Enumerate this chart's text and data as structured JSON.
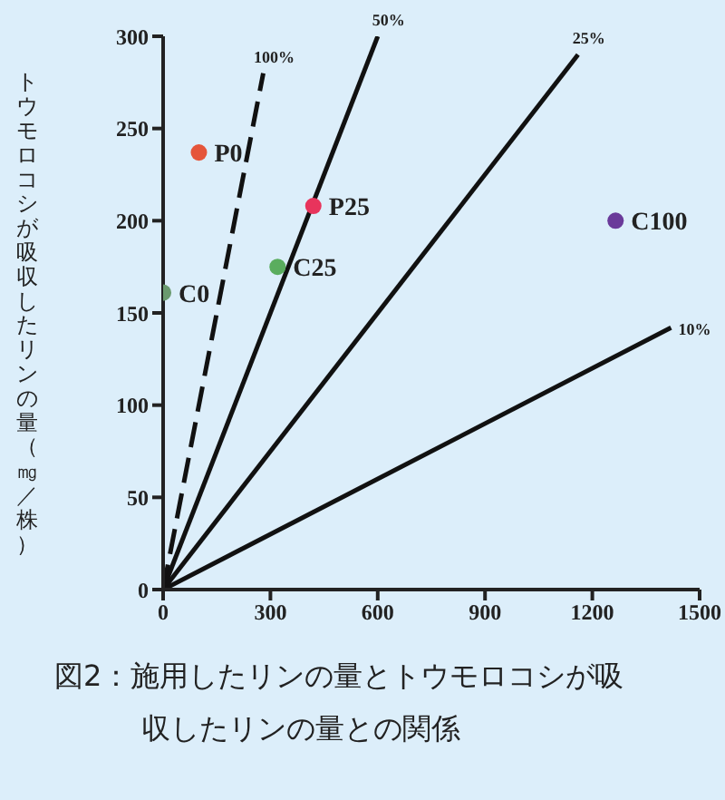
{
  "chart_data": {
    "type": "scatter",
    "title": "図2：施用したリンの量とトウモロコシが吸収したリンの量との関係",
    "ylabel": "トウモロコシが吸収したリンの量（㎎／株）",
    "xlim": [
      0,
      1500
    ],
    "xticks": [
      0,
      300,
      600,
      900,
      1200,
      1500
    ],
    "ylim": [
      0,
      300
    ],
    "yticks": [
      0,
      50,
      100,
      150,
      200,
      250,
      300
    ],
    "grid": false,
    "series": [
      {
        "name": "100%",
        "type": "line",
        "x": [
          0,
          280
        ],
        "values": [
          0,
          280
        ],
        "color": "#111111",
        "line_style": "dashed",
        "marker": "none"
      },
      {
        "name": "50%",
        "type": "line",
        "x": [
          0,
          600
        ],
        "values": [
          0,
          300
        ],
        "color": "#111111",
        "line_style": "solid",
        "marker": "none"
      },
      {
        "name": "25%",
        "type": "line",
        "x": [
          0,
          1160
        ],
        "values": [
          0,
          290
        ],
        "color": "#111111",
        "line_style": "solid",
        "marker": "none"
      },
      {
        "name": "10%",
        "type": "line",
        "x": [
          0,
          1420
        ],
        "values": [
          0,
          142
        ],
        "color": "#111111",
        "line_style": "solid",
        "marker": "none"
      },
      {
        "name": "P0",
        "x": [
          100
        ],
        "values": [
          237
        ],
        "color": "#e5553a",
        "marker": "circle"
      },
      {
        "name": "C0",
        "x": [
          0
        ],
        "values": [
          161
        ],
        "color": "#6a9a6e",
        "marker": "circle"
      },
      {
        "name": "C25",
        "x": [
          320
        ],
        "values": [
          175
        ],
        "color": "#5aad5e",
        "marker": "circle"
      },
      {
        "name": "P25",
        "x": [
          420
        ],
        "values": [
          208
        ],
        "color": "#e8345c",
        "marker": "circle"
      },
      {
        "name": "C100",
        "x": [
          1265
        ],
        "values": [
          200
        ],
        "color": "#6a3a9a",
        "marker": "circle"
      }
    ]
  }
}
